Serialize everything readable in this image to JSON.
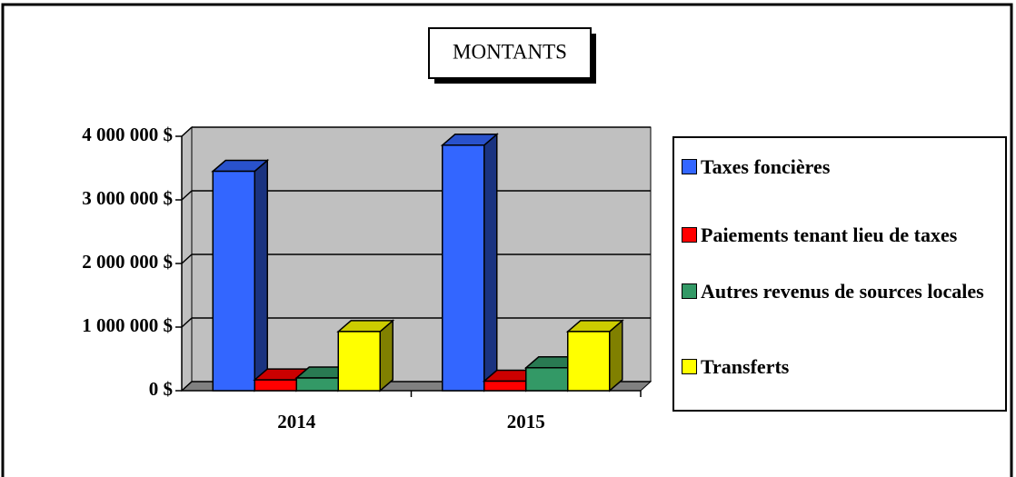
{
  "chart_data": {
    "type": "bar3d",
    "title": "MONTANTS",
    "categories": [
      "2014",
      "2015"
    ],
    "series": [
      {
        "name": "Taxes foncières",
        "color": "#3366ff",
        "values": [
          3450000,
          3860000
        ]
      },
      {
        "name": "Paiements tenant lieu de taxes",
        "color": "#ff0000",
        "values": [
          170000,
          150000
        ]
      },
      {
        "name": "Autres revenus de sources locales",
        "color": "#339966",
        "values": [
          200000,
          360000
        ]
      },
      {
        "name": "Transferts",
        "color": "#ffff00",
        "values": [
          930000,
          930000
        ]
      }
    ],
    "ylim": [
      0,
      4000000
    ],
    "yticks": [
      {
        "value": 0,
        "label": "0 $"
      },
      {
        "value": 1000000,
        "label": "1 000 000 $"
      },
      {
        "value": 2000000,
        "label": "2 000 000 $"
      },
      {
        "value": 3000000,
        "label": "3 000 000 $"
      },
      {
        "value": 4000000,
        "label": "4 000 000 $"
      }
    ],
    "grid": true,
    "legend": "right"
  }
}
